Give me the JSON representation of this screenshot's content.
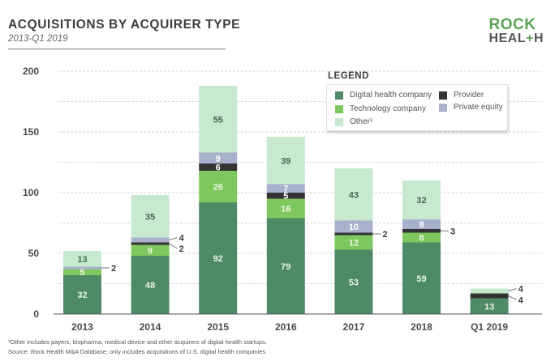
{
  "header": {
    "title": "ACQUISITIONS BY ACQUIRER TYPE",
    "subtitle": "2013-Q1 2019"
  },
  "logo": {
    "line1": "ROCK",
    "line2_a": "HEAL",
    "line2_plus": "+",
    "line2_b": "H"
  },
  "legend": {
    "title": "LEGEND",
    "items": [
      {
        "label": "Digital health company",
        "color": "#4f8a67"
      },
      {
        "label": "Provider",
        "color": "#333333"
      },
      {
        "label": "Technology company",
        "color": "#7fc860"
      },
      {
        "label": "Private equity",
        "color": "#a9b0cc"
      },
      {
        "label": "Other¹",
        "color": "#c7e9cf"
      }
    ]
  },
  "footnotes": {
    "line1": "¹Other includes payers, biopharma, medical device and other acquirers of digital health startups.",
    "line2": "Source: Rock Health M&A Database; only includes acquisitions of U.S. digital health companies"
  },
  "chart_data": {
    "type": "bar",
    "stacked": true,
    "title": "ACQUISITIONS BY ACQUIRER TYPE",
    "subtitle": "2013-Q1 2019",
    "xlabel": "",
    "ylabel": "",
    "ylim": [
      0,
      200
    ],
    "yticks": [
      0,
      50,
      100,
      150,
      200
    ],
    "grid": true,
    "grid_step": 25,
    "legend_position": "top-right",
    "categories": [
      "2013",
      "2014",
      "2015",
      "2016",
      "2017",
      "2018",
      "Q1 2019"
    ],
    "series": [
      {
        "name": "Digital health company",
        "color": "#4f8a67",
        "label_color": "#e8f3ea",
        "values": [
          32,
          48,
          92,
          79,
          53,
          59,
          13
        ]
      },
      {
        "name": "Technology company",
        "color": "#7fc860",
        "label_color": "#eaf7df",
        "values": [
          5,
          9,
          26,
          16,
          12,
          8,
          0
        ]
      },
      {
        "name": "Provider",
        "color": "#333333",
        "label_color": "#ffffff",
        "values": [
          0,
          2,
          6,
          5,
          2,
          3,
          4
        ]
      },
      {
        "name": "Private equity",
        "color": "#a9b0cc",
        "label_color": "#ffffff",
        "values": [
          2,
          4,
          9,
          7,
          10,
          8,
          0
        ]
      },
      {
        "name": "Other¹",
        "color": "#c7e9cf",
        "label_color": "#3f6b4f",
        "values": [
          13,
          35,
          55,
          39,
          43,
          32,
          4
        ]
      }
    ],
    "annotations": [
      {
        "category": "2013",
        "series": "Private equity",
        "text": "2",
        "placement": "outside"
      },
      {
        "category": "2014",
        "series": "Private equity",
        "text": "4",
        "placement": "outside"
      },
      {
        "category": "2014",
        "series": "Provider",
        "text": "2",
        "placement": "outside"
      },
      {
        "category": "2017",
        "series": "Provider",
        "text": "2",
        "placement": "outside"
      },
      {
        "category": "2018",
        "series": "Provider",
        "text": "3",
        "placement": "outside"
      },
      {
        "category": "Q1 2019",
        "series": "Other¹",
        "text": "4",
        "placement": "outside"
      },
      {
        "category": "Q1 2019",
        "series": "Provider",
        "text": "4",
        "placement": "outside"
      }
    ]
  }
}
